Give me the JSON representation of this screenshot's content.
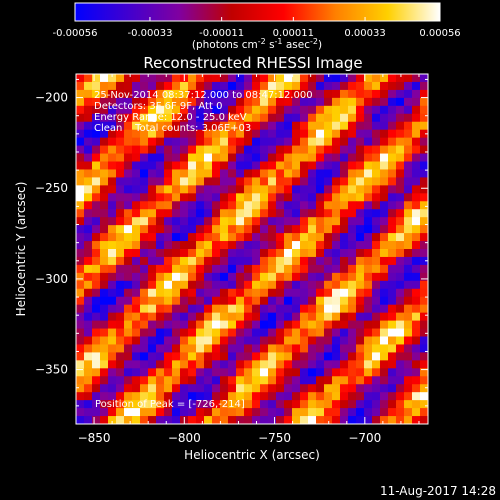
{
  "title": "Reconstructed RHESSI Image",
  "date_stamp": "11-Aug-2017 14:28",
  "info_lines": [
    "25-Nov-2014 08:37:12.000 to 08:47:12.000",
    "Detectors: 3F 6F 9F, Att 0",
    "Energy Range: 12.0 - 25.0 keV",
    "Clean    Total counts: 3.06E+03"
  ],
  "peak_text": "Position of Peak = [-726,-214]",
  "colorbar": {
    "min": -0.00056,
    "max": 0.00056,
    "tick_labels": [
      "-0.00056",
      "-0.00033",
      "-0.00011",
      "0.00011",
      "0.00033",
      "0.00056"
    ],
    "unit_parts": [
      "(photons cm",
      "-2",
      " s",
      "-1",
      " asec",
      "-2",
      ")"
    ],
    "colormap": [
      "#0000ff",
      "#4000d0",
      "#8000a0",
      "#c00000",
      "#ff0000",
      "#ff8000",
      "#ffd000",
      "#ffffff"
    ]
  },
  "chart_data": {
    "type": "heatmap",
    "title": "Reconstructed RHESSI Image",
    "xlabel": "Heliocentric X (arcsec)",
    "ylabel": "Heliocentric Y (arcsec)",
    "xlim": [
      -860,
      -665
    ],
    "ylim": [
      -380,
      -187
    ],
    "x_ticks": [
      -850,
      -800,
      -750,
      -700
    ],
    "y_ticks": [
      -200,
      -250,
      -300,
      -350
    ],
    "x_tick_labels": [
      "−850",
      "−800",
      "−750",
      "−700"
    ],
    "y_tick_labels": [
      "−200",
      "−250",
      "−300",
      "−350"
    ],
    "grid": false,
    "value_range": [
      -0.00056,
      0.00056
    ],
    "peak_position": [
      -726,
      -214
    ],
    "stripe_pattern": "diagonal fringes running upper-left to lower-right"
  }
}
